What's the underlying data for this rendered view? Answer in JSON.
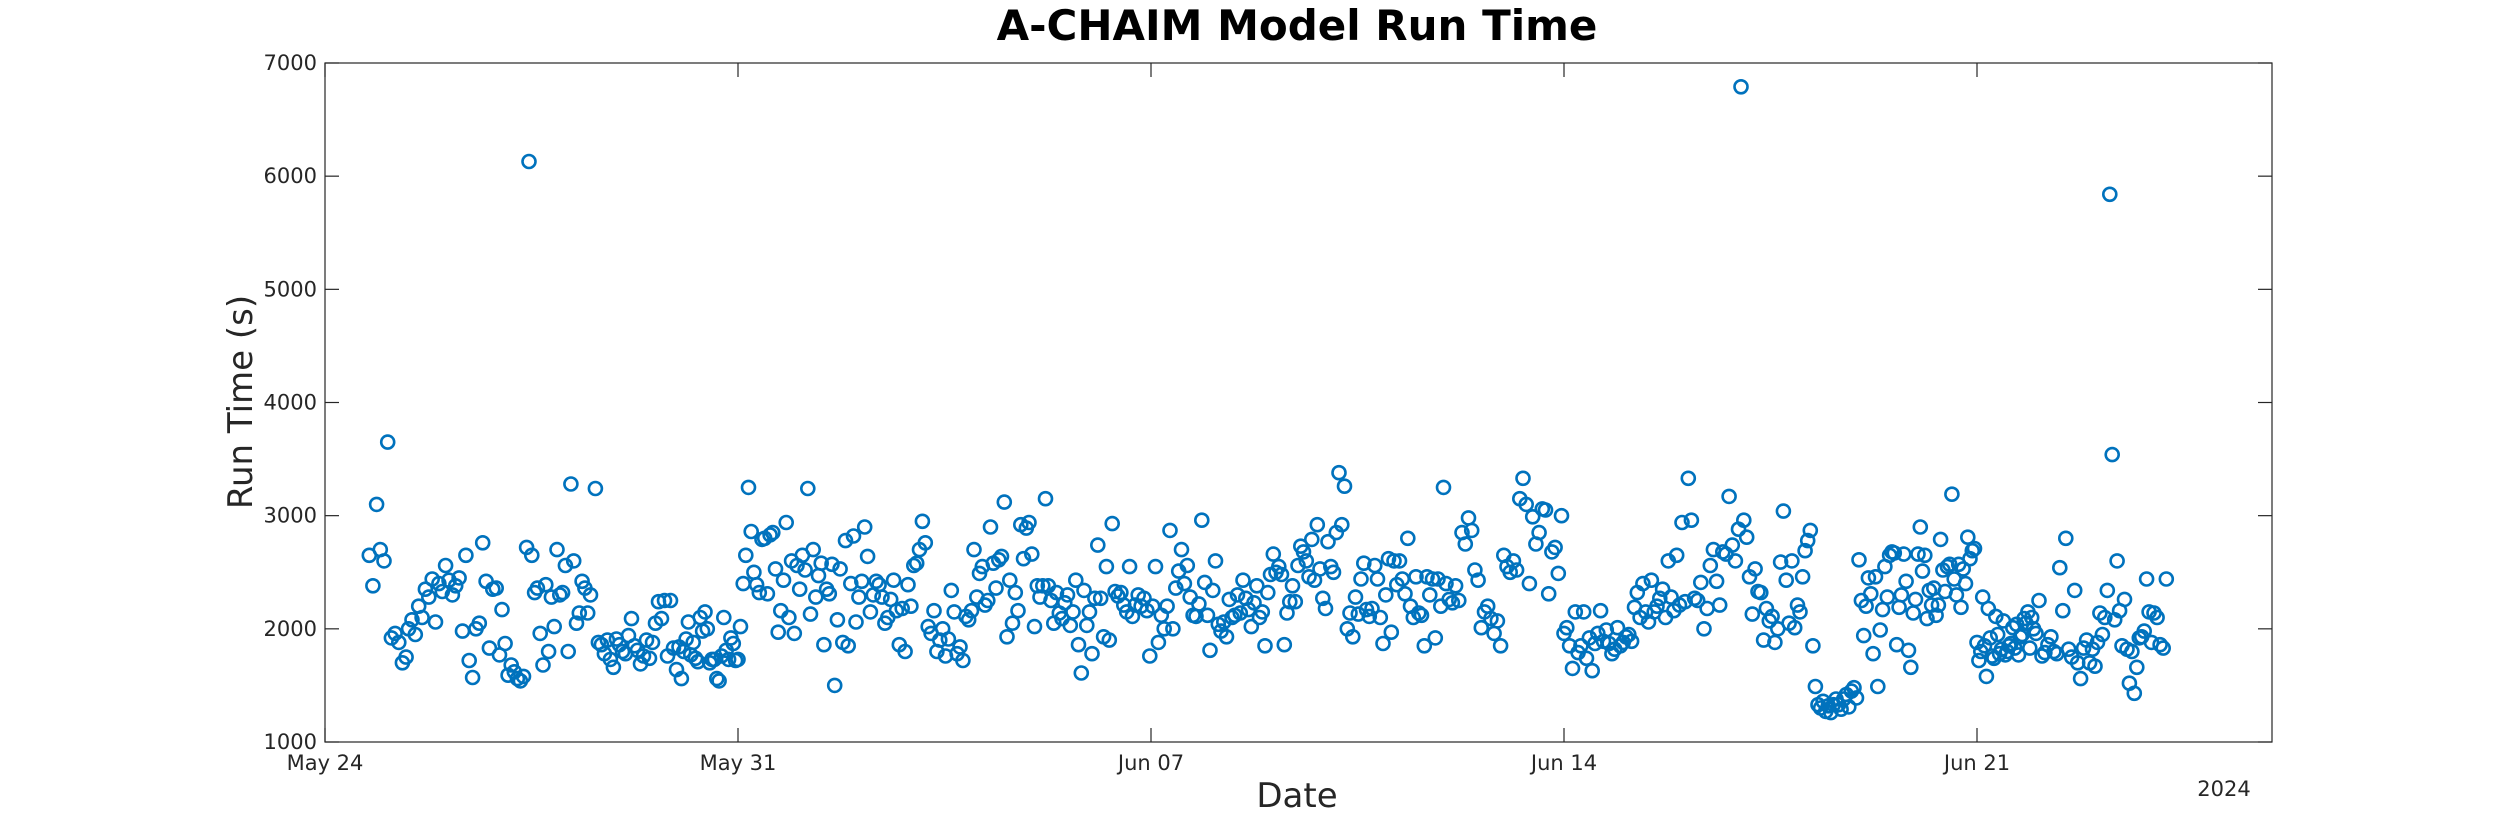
{
  "chart_data": {
    "type": "scatter",
    "title": "A-CHAIM Model Run Time",
    "xlabel": "Date",
    "ylabel": "Run Time (s)",
    "x_axis_type": "date",
    "xlim": [
      "2024-05-24",
      "2024-06-26"
    ],
    "ylim": [
      1000,
      7000
    ],
    "x_ticks": [
      {
        "date": "2024-05-24",
        "label": "May 24"
      },
      {
        "date": "2024-05-31",
        "label": "May 31"
      },
      {
        "date": "2024-06-07",
        "label": "Jun 07"
      },
      {
        "date": "2024-06-14",
        "label": "Jun 14"
      },
      {
        "date": "2024-06-21",
        "label": "Jun 21"
      }
    ],
    "x_secondary_label": "2024",
    "y_ticks": [
      1000,
      2000,
      3000,
      4000,
      5000,
      6000,
      7000
    ],
    "grid": false,
    "legend": "none",
    "marker_color": "#0072BD",
    "marker": "open-circle",
    "segments": [
      {
        "start": "2024-05-24T18:00",
        "end": "2024-05-25T09:00",
        "values": [
          2650,
          2380,
          3100,
          2700,
          2600,
          3650,
          1920,
          1960,
          1880,
          1700,
          1750
        ]
      },
      {
        "start": "2024-05-25T10:00",
        "end": "2024-05-26T23:00",
        "values": [
          2000,
          2080,
          1950,
          2200,
          2100,
          2350,
          2280,
          2440,
          2060,
          2400,
          2330,
          2560,
          2430,
          2300,
          2380,
          2450,
          1980,
          2650,
          1720,
          1570,
          2000,
          2050,
          2760,
          2420,
          1830,
          2350,
          2360,
          1770
        ]
      },
      {
        "start": "2024-05-27T00:00",
        "end": "2024-05-27T10:00",
        "values": [
          2170,
          1870,
          1590,
          1680,
          1620,
          1560,
          1540,
          1580,
          2720
        ]
      },
      {
        "start": "2024-05-27T11:00",
        "end": "2024-05-28T12:00",
        "values": [
          6130,
          2650,
          2320,
          2360,
          1960,
          1680,
          2390,
          1800,
          2280,
          2020,
          2700,
          2300,
          2320,
          2560,
          1800,
          3280,
          2600,
          2050,
          2140,
          2420,
          2360,
          2140,
          2300
        ]
      },
      {
        "start": "2024-05-28T14:00",
        "end": "2024-05-29T23:00",
        "values": [
          3240,
          1880,
          1860,
          1780,
          1900,
          1730,
          1660,
          1910,
          1860,
          1800,
          1780,
          1940,
          2090,
          1850,
          1810,
          1690,
          1760,
          1900,
          1740,
          1880,
          2050,
          2240,
          2090,
          2250,
          1760,
          2250,
          1830,
          1640
        ]
      },
      {
        "start": "2024-05-30T00:00",
        "end": "2024-05-31T00:00",
        "values": [
          1840,
          1560,
          1800,
          1910,
          2060,
          1770,
          1880,
          1740,
          1710,
          2100,
          1980,
          2150,
          2000,
          1700,
          1730,
          1730,
          1560,
          1540,
          1760,
          2100,
          1810,
          1730,
          1920,
          1870,
          1720,
          1730
        ]
      },
      {
        "start": "2024-05-31T01:00",
        "end": "2024-06-01T23:00",
        "values": [
          2020,
          2400,
          2650,
          3250,
          2860,
          2500,
          2390,
          2320,
          2790,
          2800,
          2310,
          2830,
          2850,
          2530,
          1970,
          2160,
          2430,
          2940,
          2100,
          2600,
          1960,
          2560,
          2350,
          2650,
          2520,
          3240,
          2130,
          2700,
          2280,
          2470,
          2580,
          1860,
          2350,
          2310,
          2570,
          1500,
          2080,
          2530,
          1880,
          2780,
          1850,
          2400,
          2820
        ]
      },
      {
        "start": "2024-06-02T00:00",
        "end": "2024-06-03T23:00",
        "values": [
          2060,
          2280,
          2420,
          2900,
          2640,
          2150,
          2300,
          2420,
          2390,
          2280,
          2050,
          2100,
          2260,
          2430,
          2160,
          1860,
          2180,
          1800,
          2390,
          2200,
          2560,
          2580,
          2700,
          2950,
          2760,
          2020,
          1960,
          2160,
          1800,
          1900,
          2000,
          1760,
          1910,
          2340,
          2150,
          1780,
          1840,
          1720,
          2110,
          2080,
          2160
        ]
      },
      {
        "start": "2024-06-04T00:00",
        "end": "2024-06-05T23:00",
        "values": [
          2700,
          2280,
          2490,
          2550,
          2210,
          2250,
          2900,
          2580,
          2360,
          2610,
          2640,
          3120,
          1930,
          2430,
          2050,
          2320,
          2160,
          2920,
          2620,
          2890,
          2940,
          2660,
          2020,
          2380,
          2280,
          2380,
          3150,
          2380,
          2250,
          2050,
          2320,
          2140,
          2090,
          2230,
          2300,
          2030,
          2150,
          2430,
          1860,
          1610,
          2340,
          2030,
          2150
        ]
      },
      {
        "start": "2024-06-06T00:00",
        "end": "2024-06-07T23:00",
        "values": [
          1780,
          2270,
          2740,
          2270,
          1930,
          2550,
          1900,
          2930,
          2330,
          2290,
          2320,
          2210,
          2150,
          2550,
          2110,
          2210,
          2300,
          2200,
          2270,
          2160,
          1760,
          2200,
          2550,
          1880,
          2120,
          2000,
          2200,
          2870,
          2000,
          2360,
          2510,
          2700,
          2400,
          2560,
          2280,
          2120,
          2110,
          2220,
          2960,
          2410,
          2120
        ]
      },
      {
        "start": "2024-06-08T00:00",
        "end": "2024-06-09T23:00",
        "values": [
          1810,
          2340,
          2600,
          2040,
          1980,
          2060,
          1930,
          2260,
          2100,
          2120,
          2300,
          2140,
          2430,
          2270,
          2170,
          2020,
          2230,
          2380,
          2100,
          2150,
          1850,
          2320,
          2480,
          2660,
          2500,
          2550,
          2480,
          1860,
          2140,
          2240,
          2380,
          2240,
          2560,
          2730,
          2680,
          2600,
          2460,
          2790,
          2430,
          2920,
          2530,
          2270,
          2180
        ]
      },
      {
        "start": "2024-06-10T00:00",
        "end": "2024-06-11T23:00",
        "values": [
          2770,
          2550,
          2500,
          2850,
          3380,
          2920,
          3260,
          2000,
          2140,
          1930,
          2280,
          2130,
          2440,
          2580,
          2170,
          2110,
          2180,
          2560,
          2440,
          2100,
          1870,
          2300,
          2620,
          1970,
          2600,
          2390,
          2600,
          2440,
          2310,
          2800,
          2200,
          2100,
          2460,
          2140,
          2120,
          1850,
          2460,
          2300,
          2440,
          1920,
          2440,
          2200,
          3250
        ]
      },
      {
        "start": "2024-06-12T00:00",
        "end": "2024-06-13T23:00",
        "values": [
          2400,
          2260,
          2230,
          2380,
          2250,
          2850,
          2750,
          2980,
          2870,
          2520,
          2430,
          2010,
          2150,
          2200,
          2090,
          1960,
          2070,
          1850,
          2650,
          2550,
          2500,
          2600,
          2520,
          3150,
          3330,
          3100,
          2400,
          2990,
          2750,
          2850,
          3060,
          3050,
          2310,
          2680,
          2720,
          2490,
          3000
        ]
      },
      {
        "start": "2024-06-14T00:00",
        "end": "2024-06-15T23:00",
        "values": [
          1960,
          2010,
          1850,
          1650,
          2150,
          1790,
          1850,
          2150,
          1740,
          1920,
          1630,
          1870,
          1960,
          2160,
          1890,
          1990,
          1870,
          1780,
          1820,
          2010,
          1850,
          1880,
          1930,
          1950,
          1890,
          2190,
          2320,
          2100,
          2400,
          2150,
          2060,
          2430,
          2150,
          2200,
          2270,
          2350,
          2100,
          2600,
          2280,
          2160,
          2650,
          2210
        ]
      },
      {
        "start": "2024-06-16T00:00",
        "end": "2024-06-16T23:00",
        "values": [
          2940,
          2240,
          3330,
          2960,
          2270,
          2250,
          2410,
          2000,
          2180,
          2560,
          2700,
          2420,
          2210,
          2680,
          2660,
          3170,
          2740,
          2600,
          2880
        ]
      },
      {
        "start": "2024-06-17T00:00",
        "end": "2024-06-17T23:00",
        "values": [
          6790,
          2960,
          2810,
          2460,
          2130,
          2530,
          2330,
          2320,
          1900,
          2180,
          2070,
          2110,
          1880,
          2000,
          2590,
          3040,
          2430,
          2050,
          2600,
          2010,
          2210
        ]
      },
      {
        "start": "2024-06-18T00:00",
        "end": "2024-06-18T23:00",
        "values": [
          2150,
          2460,
          2690,
          2780,
          2870,
          1850,
          1490,
          1330,
          1300,
          1360,
          1270,
          1320,
          1260,
          1330,
          1380,
          1330,
          1290,
          1380,
          1420,
          1310,
          1450,
          1480,
          1390
        ]
      },
      {
        "start": "2024-06-19T00:00",
        "end": "2024-06-19T23:00",
        "values": [
          2610,
          2250,
          1940,
          2200,
          2450,
          2310,
          1780,
          2460,
          1490,
          1990,
          2170,
          2550,
          2280,
          2650,
          2680,
          2670,
          1860,
          2190,
          2300,
          2660,
          2420,
          1810,
          1660,
          2140,
          2260
        ]
      },
      {
        "start": "2024-06-20T00:00",
        "end": "2024-06-20T23:00",
        "values": [
          2660,
          2900,
          2510,
          2650,
          2090,
          2340,
          2210,
          2360,
          2120,
          2210,
          2790,
          2520,
          2330,
          2550,
          2570,
          3190,
          2440,
          2300,
          2570,
          2190,
          2530,
          2400,
          2810,
          2620,
          2690,
          2710
        ]
      },
      {
        "start": "2024-06-21T00:00",
        "end": "2024-06-21T23:00",
        "values": [
          1880,
          1720,
          1800,
          2280,
          1850,
          1580,
          2180,
          1920,
          1760,
          1740,
          2110,
          1950,
          1780,
          1820,
          2070,
          1770,
          1800,
          1850,
          1870,
          2010,
          1830,
          2040,
          1770,
          1930,
          1950,
          2090,
          2050,
          2150,
          1830,
          2100,
          2000
        ]
      },
      {
        "start": "2024-06-22T00:00",
        "end": "2024-06-22T23:00",
        "values": [
          1960,
          2250,
          1760,
          1790,
          1860,
          1930,
          1800,
          1780,
          2540,
          2160,
          2800,
          1820,
          1750,
          2340,
          1700,
          1560,
          1830,
          1900,
          1700,
          1820
        ]
      },
      {
        "start": "2024-06-23T00:00",
        "end": "2024-06-23T23:00",
        "values": [
          1670,
          1880,
          2140,
          1950,
          2100,
          2340,
          5840,
          3540,
          2080,
          2600,
          2160,
          1850,
          2260,
          1820,
          1520,
          1800,
          1430,
          1660,
          1920,
          1930,
          1980,
          2440,
          2150,
          1880
        ]
      },
      {
        "start": "2024-06-24T00:00",
        "end": "2024-06-24T05:00",
        "values": [
          2140,
          2100,
          1860,
          1830,
          2440
        ]
      }
    ]
  }
}
